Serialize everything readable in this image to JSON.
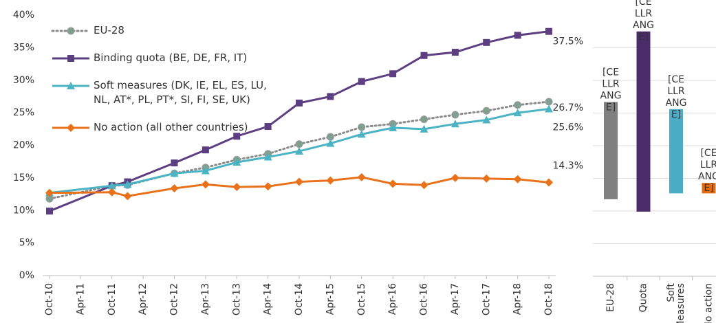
{
  "chart_data": [
    {
      "type": "line",
      "x": [
        0,
        12,
        15,
        24,
        30,
        36,
        42,
        48,
        54,
        60,
        66,
        72,
        78,
        84,
        90,
        96
      ],
      "xlim": [
        0,
        96
      ],
      "xticks": [
        {
          "value": 0,
          "label": "Oct-10"
        },
        {
          "value": 6,
          "label": "Apr-11"
        },
        {
          "value": 12,
          "label": "Oct-11"
        },
        {
          "value": 18,
          "label": "Apr-12"
        },
        {
          "value": 24,
          "label": "Oct-12"
        },
        {
          "value": 30,
          "label": "Apr-13"
        },
        {
          "value": 36,
          "label": "Oct-13"
        },
        {
          "value": 42,
          "label": "Apr-14"
        },
        {
          "value": 48,
          "label": "Oct-14"
        },
        {
          "value": 54,
          "label": "Apr-15"
        },
        {
          "value": 60,
          "label": "Oct-15"
        },
        {
          "value": 66,
          "label": "Apr-16"
        },
        {
          "value": 72,
          "label": "Oct-16"
        },
        {
          "value": 78,
          "label": "Apr-17"
        },
        {
          "value": 84,
          "label": "Oct-17"
        },
        {
          "value": 90,
          "label": "Apr-18"
        },
        {
          "value": 96,
          "label": "Oct-18"
        }
      ],
      "ylim": [
        0,
        40
      ],
      "yticks": [
        {
          "value": 0,
          "label": "0%"
        },
        {
          "value": 5,
          "label": "5%"
        },
        {
          "value": 10,
          "label": "10%"
        },
        {
          "value": 15,
          "label": "15%"
        },
        {
          "value": 20,
          "label": "20%"
        },
        {
          "value": 25,
          "label": "25%"
        },
        {
          "value": 30,
          "label": "30%"
        },
        {
          "value": 35,
          "label": "35%"
        },
        {
          "value": 40,
          "label": "40%"
        }
      ],
      "grid": false,
      "legend": "upper left",
      "series": [
        {
          "name": "EU-28",
          "color": "#8a8a8a",
          "marker_color": "#7f9f8f",
          "marker": "circle",
          "line_style": "dotted",
          "values": [
            11.8,
            13.8,
            13.9,
            15.7,
            16.6,
            17.8,
            18.7,
            20.2,
            21.3,
            22.8,
            23.3,
            24.0,
            24.7,
            25.3,
            26.2,
            26.7
          ],
          "value_labels": [
            null,
            null,
            null,
            null,
            null,
            null,
            null,
            null,
            null,
            null,
            null,
            null,
            null,
            null,
            null,
            "26.7%"
          ]
        },
        {
          "name": "Binding quota (BE, DE, FR, IT)",
          "color": "#5b3f80",
          "marker_color": "#5b3f80",
          "marker": "square",
          "line_style": "solid",
          "values": [
            9.9,
            13.8,
            14.4,
            17.3,
            19.3,
            21.4,
            22.9,
            26.5,
            27.5,
            29.8,
            31.0,
            33.8,
            34.3,
            35.8,
            36.9,
            37.5
          ],
          "value_labels": [
            null,
            null,
            null,
            null,
            null,
            null,
            null,
            null,
            null,
            null,
            null,
            null,
            null,
            null,
            null,
            "37.5%"
          ]
        },
        {
          "name": "Soft measures (DK, IE, EL, ES, LU, NL, AT*, PL, PT*, SI, FI, SE, UK)",
          "color": "#4bb3c3",
          "marker_color": "#4bb3c3",
          "marker": "triangle",
          "line_style": "solid",
          "values": [
            12.7,
            13.8,
            14.0,
            15.7,
            16.1,
            17.4,
            18.2,
            19.1,
            20.3,
            21.7,
            22.7,
            22.5,
            23.3,
            23.9,
            25.0,
            25.6
          ],
          "value_labels": [
            null,
            null,
            null,
            null,
            null,
            null,
            null,
            null,
            null,
            null,
            null,
            null,
            null,
            null,
            null,
            "25.6%"
          ]
        },
        {
          "name": "No action (all other countries)",
          "color": "#e8711a",
          "marker_color": "#e8711a",
          "marker": "diamond",
          "line_style": "solid",
          "values": [
            12.7,
            12.8,
            12.2,
            13.4,
            14.0,
            13.6,
            13.7,
            14.4,
            14.6,
            15.1,
            14.1,
            13.9,
            15.0,
            14.9,
            14.8,
            14.3
          ],
          "value_labels": [
            null,
            null,
            null,
            null,
            null,
            null,
            null,
            null,
            null,
            null,
            null,
            null,
            null,
            null,
            null,
            "14.3%"
          ]
        }
      ]
    },
    {
      "type": "range_bar",
      "categories": [
        "EU-28",
        "Quota",
        "Soft Measures",
        "No action"
      ],
      "low": [
        11.8,
        9.9,
        12.7,
        12.7
      ],
      "high": [
        26.7,
        37.5,
        25.6,
        14.3
      ],
      "colors": [
        "#808080",
        "#4b2c6b",
        "#4aadc5",
        "#e46c0a"
      ],
      "value_labels": [
        "[CELLRANGE]",
        "[CELLRANGE]",
        "[CELLRANGE]",
        "[CELLRANGE]"
      ],
      "ylim": [
        0,
        40
      ],
      "yticks": [
        0,
        5,
        10,
        15,
        20,
        25,
        30,
        35
      ],
      "grid": true
    }
  ]
}
